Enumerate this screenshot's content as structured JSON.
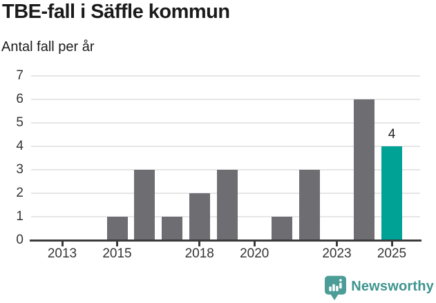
{
  "header": {
    "title": "TBE-fall i Säffle kommun",
    "subtitle": "Antal fall per år"
  },
  "chart_data": {
    "type": "bar",
    "title": "TBE-fall i Säffle kommun",
    "subtitle": "Antal fall per år",
    "categories": [
      2013,
      2014,
      2015,
      2016,
      2017,
      2018,
      2019,
      2020,
      2021,
      2022,
      2023,
      2024,
      2025
    ],
    "values": [
      0,
      0,
      1,
      3,
      1,
      2,
      3,
      0,
      1,
      3,
      0,
      6,
      4
    ],
    "highlight_category": 2025,
    "annotations": [
      {
        "category": 2025,
        "text": "4"
      }
    ],
    "xlabel": "",
    "ylabel": "",
    "ylim": [
      0,
      7
    ],
    "yticks": [
      0,
      1,
      2,
      3,
      4,
      5,
      6,
      7
    ],
    "xticks": [
      2013,
      2015,
      2018,
      2020,
      2023,
      2025
    ],
    "grid": true,
    "legend": false,
    "bar_color": "#6d6d72",
    "highlight_color": "#00a296"
  },
  "colors": {
    "gridline": "#e6e6e6",
    "axis": "#3b3b3b",
    "title_text": "#1a1a1a",
    "tick_text": "#333333",
    "brand_text": "#3f948e",
    "brand_pin": "#4c9d97"
  },
  "footer": {
    "brand": "Newsworthy"
  }
}
